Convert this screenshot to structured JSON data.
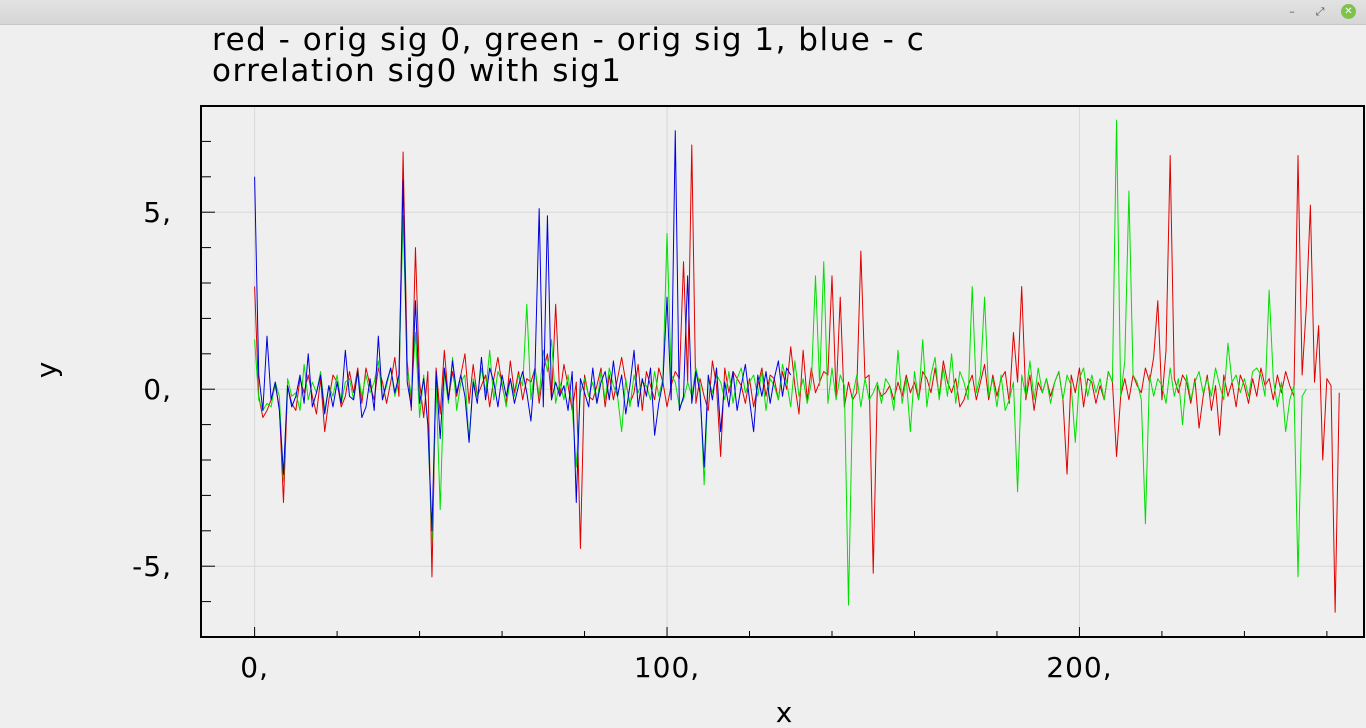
{
  "window": {
    "minimize_label": "–",
    "maximize_label": "⤢",
    "close_label": "✕",
    "close_color": "#7ec24a"
  },
  "chart_data": {
    "type": "line",
    "title_line1": "red - orig sig 0, green - orig sig 1, blue - c",
    "title_line2": "orrelation sig0 with sig1",
    "xlabel": "x",
    "ylabel": "y",
    "xlim": [
      -13,
      269
    ],
    "ylim": [
      -7,
      8
    ],
    "x_ticks": [
      {
        "value": 0,
        "label": "0,"
      },
      {
        "value": 100,
        "label": "100,"
      },
      {
        "value": 200,
        "label": "200,"
      }
    ],
    "y_ticks": [
      {
        "value": 5,
        "label": "5,"
      },
      {
        "value": 0,
        "label": "0,"
      },
      {
        "value": -5,
        "label": "-5,"
      }
    ],
    "x_minor_step": 20,
    "y_minor_step": 1,
    "grid": true,
    "series": [
      {
        "color": "#e00000",
        "x_start": 0,
        "values": [
          2.9,
          -0.2,
          -0.8,
          -0.6,
          -0.3,
          0.1,
          -0.5,
          -3.2,
          0.1,
          -0.4,
          -0.6,
          0.3,
          -0.1,
          0.4,
          -0.2,
          -0.7,
          0.3,
          -1.2,
          -0.3,
          0.4,
          0.2,
          -0.5,
          -0.2,
          0.5,
          -0.1,
          0.6,
          -0.4,
          0.6,
          0.1,
          -0.3,
          0.6,
          0.2,
          -0.4,
          0.2,
          0.9,
          -0.2,
          6.7,
          0.8,
          -0.6,
          4.0,
          0.2,
          -0.8,
          0.5,
          -5.3,
          0.6,
          -0.7,
          1.1,
          -0.3,
          0.5,
          -0.2,
          0.4,
          1.0,
          -0.4,
          0.7,
          -0.2,
          0.1,
          0.4,
          -0.5,
          0.3,
          0.9,
          0.1,
          -0.4,
          0.8,
          -0.1,
          0.5,
          -0.3,
          0.3,
          0.2,
          0.6,
          -0.4,
          0.5,
          1.0,
          -0.3,
          2.4,
          -0.2,
          0.7,
          0.1,
          -0.6,
          0.2,
          -4.5,
          0.4,
          -0.2,
          -0.3,
          0.1,
          0.6,
          -0.5,
          0.4,
          -0.3,
          0.3,
          0.9,
          0.2,
          -0.4,
          -0.1,
          0.7,
          -0.6,
          0.5,
          0.1,
          -0.3,
          0.6,
          0.2,
          -0.5,
          0.1,
          0.5,
          0.3,
          3.6,
          0.2,
          6.9,
          -0.4,
          0.3,
          -0.2,
          -0.6,
          0.8,
          0.1,
          -1.9,
          0.6,
          -0.1,
          0.5,
          0.3,
          0.1,
          -0.4,
          0.3,
          -0.5,
          0.1,
          0.6,
          -0.2,
          0.4,
          0.3,
          -0.3,
          0.5,
          0.0,
          1.2,
          0.1,
          -0.7,
          1.1,
          -0.3,
          0.6,
          -0.1,
          0.2,
          0.5,
          0.4,
          3.2,
          -0.2,
          2.6,
          -0.5,
          0.2,
          -0.3,
          -0.1,
          3.9,
          0.3,
          0.4,
          -5.2,
          0.1,
          -0.2,
          -0.1,
          0.1,
          -0.3,
          0.2,
          -0.2,
          0.4,
          -0.1,
          0.2,
          -0.3,
          0.5,
          0.3,
          -0.1,
          0.6,
          -0.2,
          0.8,
          0.2,
          -0.1,
          0.3,
          -0.5,
          -0.3,
          0.1,
          0.4,
          -0.3,
          0.2,
          0.7,
          -0.3,
          0.4,
          -0.2,
          0.3,
          0.5,
          -0.4,
          1.6,
          0.2,
          2.9,
          -0.3,
          0.4,
          -0.6,
          0.2,
          -0.1,
          0.3,
          -0.2,
          0.2,
          0.5,
          -0.3,
          -2.4,
          0.4,
          -0.1,
          0.6,
          -0.5,
          0.3,
          0.2,
          -0.4,
          0.1,
          -0.3,
          0.5,
          0.2,
          -1.9,
          -0.2,
          0.3,
          -0.3,
          0.4,
          0.1,
          -0.1,
          0.6,
          0.2,
          0.9,
          2.5,
          -0.3,
          1.1,
          6.6,
          0.3,
          -0.1,
          0.4,
          0.2,
          -0.4,
          0.3,
          -1.1,
          -0.2,
          0.4,
          -0.6,
          0.1,
          -1.3,
          0.4,
          -0.2,
          0.2,
          -0.5,
          0.4,
          0.1,
          -0.4,
          0.3,
          -0.2,
          0.6,
          0.1,
          0.3,
          -0.3,
          0.4,
          -0.1,
          0.5,
          0.1,
          -0.2,
          6.6,
          0.4,
          2.3,
          5.2,
          0.2,
          1.8,
          -2.0,
          0.3,
          0.1,
          -6.3,
          -0.1
        ]
      },
      {
        "color": "#00e000",
        "x_start": 0,
        "values": [
          1.4,
          -0.3,
          -0.6,
          -0.4,
          -0.5,
          0.2,
          -0.2,
          -2.6,
          0.3,
          -0.2,
          -0.1,
          -0.6,
          0.7,
          -0.3,
          0.2,
          -0.1,
          0.5,
          -0.6,
          0.1,
          -0.2,
          0.4,
          -0.4,
          0.2,
          0.3,
          -0.3,
          0.5,
          -0.2,
          0.4,
          -0.1,
          0.2,
          0.8,
          -0.3,
          0.1,
          0.6,
          -0.2,
          0.3,
          4.9,
          0.6,
          -0.2,
          1.6,
          -0.8,
          0.4,
          -1.0,
          -4.3,
          0.2,
          -3.4,
          0.5,
          -0.4,
          0.9,
          -0.6,
          0.2,
          0.4,
          -1.5,
          0.3,
          -0.2,
          0.6,
          -0.1,
          1.1,
          -0.3,
          0.5,
          0.2,
          -0.5,
          0.3,
          -0.2,
          0.4,
          0.1,
          2.4,
          -0.3,
          0.6,
          -0.2,
          1.1,
          0.5,
          1.4,
          -0.4,
          0.2,
          -0.3,
          0.4,
          -0.5,
          -2.2,
          -0.1,
          0.3,
          -0.2,
          0.2,
          -0.4,
          0.5,
          -0.3,
          0.6,
          0.1,
          -0.2,
          -1.2,
          0.3,
          -0.5,
          0.4,
          -0.1,
          0.2,
          0.1,
          -0.3,
          0.5,
          -0.2,
          0.3,
          4.4,
          0.4,
          0.2,
          -0.5,
          -0.3,
          0.2,
          -0.2,
          0.6,
          0.1,
          -2.7,
          0.3,
          -0.1,
          0.4,
          0.2,
          -0.3,
          0.5,
          -0.4,
          0.3,
          0.6,
          -0.1,
          0.2,
          0.4,
          -0.2,
          0.5,
          -0.6,
          0.3,
          0.1,
          -0.3,
          0.7,
          0.2,
          -0.5,
          0.8,
          -0.2,
          0.3,
          -0.4,
          0.2,
          3.2,
          0.1,
          3.6,
          -0.4,
          0.6,
          -0.3,
          0.4,
          0.1,
          -6.1,
          -0.2,
          0.4,
          -0.5,
          0.3,
          -0.3,
          -0.1,
          0.2,
          -0.4,
          0.3,
          0.1,
          -0.6,
          1.1,
          -0.4,
          0.3,
          -1.2,
          0.5,
          -0.3,
          1.4,
          -0.5,
          0.4,
          0.9,
          -0.3,
          0.6,
          -0.2,
          1.0,
          -0.4,
          0.5,
          0.2,
          -0.3,
          2.9,
          -0.1,
          0.4,
          2.6,
          -0.2,
          0.3,
          -0.5,
          0.4,
          -0.6,
          -0.3,
          0.2,
          -2.9,
          0.4,
          -0.2,
          0.8,
          -0.3,
          0.6,
          -0.1,
          0.3,
          -0.4,
          0.2,
          0.5,
          -0.3,
          0.4,
          0.1,
          -1.5,
          0.3,
          0.6,
          -0.2,
          0.4,
          -0.1,
          0.3,
          -0.3,
          0.5,
          0.2,
          7.6,
          -0.2,
          0.8,
          5.6,
          0.4,
          0.2,
          -0.3,
          -3.8,
          0.4,
          -0.2,
          0.3,
          0.1,
          -0.4,
          0.6,
          -0.2,
          0.3,
          -1.0,
          0.4,
          -0.3,
          0.2,
          0.5,
          -0.1,
          0.3,
          -0.2,
          0.6,
          0.1,
          -0.3,
          1.3,
          0.2,
          0.4,
          -0.1,
          0.3,
          -0.2,
          0.5,
          0.6,
          0.4,
          -0.2,
          2.8,
          0.3,
          -0.5,
          0.2,
          -1.2,
          -0.3,
          0.1,
          -5.3,
          -0.2,
          0.0
        ]
      },
      {
        "color": "#0000e0",
        "x_start": 0,
        "values": [
          6.0,
          0.4,
          -0.6,
          1.5,
          -0.3,
          0.2,
          -0.6,
          -2.4,
          0.1,
          -0.5,
          -0.2,
          0.4,
          -0.4,
          1.0,
          -0.5,
          -0.1,
          0.4,
          -0.7,
          0.1,
          -0.5,
          0.2,
          -0.4,
          1.1,
          -0.2,
          -0.3,
          0.5,
          -0.8,
          -0.5,
          0.3,
          -0.6,
          1.5,
          -0.3,
          0.2,
          0.6,
          -0.1,
          0.4,
          5.9,
          0.2,
          -0.5,
          2.5,
          -0.4,
          0.3,
          -1.0,
          -4.0,
          0.5,
          -1.4,
          0.6,
          -0.3,
          0.8,
          -0.1,
          0.4,
          -0.2,
          -1.5,
          0.2,
          -0.4,
          0.9,
          -0.3,
          0.6,
          0.2,
          -0.5,
          0.4,
          -0.2,
          0.3,
          -0.4,
          0.1,
          0.5,
          -0.1,
          -0.9,
          0.6,
          5.1,
          -0.5,
          4.9,
          -0.3,
          0.2,
          -0.2,
          0.1,
          -0.6,
          0.5,
          -3.2,
          0.3,
          -0.1,
          -0.5,
          0.6,
          -0.4,
          0.2,
          0.5,
          -0.3,
          0.8,
          -0.2,
          0.4,
          -0.7,
          0.1,
          1.1,
          -0.5,
          0.3,
          -0.2,
          0.6,
          -1.3,
          -0.4,
          0.2,
          2.6,
          -0.3,
          7.3,
          -0.6,
          -0.2,
          3.2,
          -0.4,
          0.5,
          -0.1,
          -2.2,
          0.4,
          -0.3,
          0.6,
          -1.2,
          0.2,
          -0.5,
          0.5,
          -0.6,
          0.1,
          0.7,
          -0.3,
          -1.2,
          0.4,
          -0.2,
          0.5,
          -0.4,
          0.3,
          0.8,
          -0.2,
          0.6,
          0.4
        ]
      }
    ]
  }
}
